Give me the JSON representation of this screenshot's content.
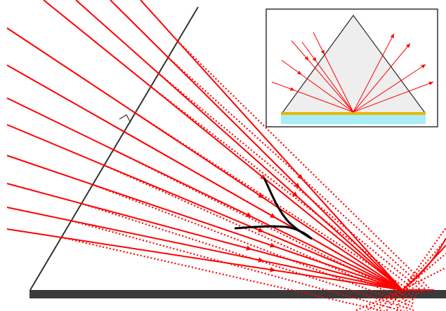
{
  "figure": {
    "description_visible_text": "",
    "colors": {
      "ray": "#ff0000",
      "prism_edge": "#333333",
      "base_plate": "#3a3a3a",
      "caustic": "#000000",
      "inset_prism_fill": "#eeeeee",
      "inset_gold_film": "#e8b800",
      "inset_substrate": "#a9ecfa"
    },
    "main_panel": {
      "elements": [
        "prism-face",
        "right-angle-mark",
        "incident-rays",
        "virtual-ray-extensions",
        "reflected-rays",
        "caustic-curve",
        "base-plate"
      ]
    },
    "inset": {
      "elements": [
        "prism",
        "gold-film",
        "substrate",
        "incident-rays",
        "reflected-rays"
      ]
    }
  }
}
